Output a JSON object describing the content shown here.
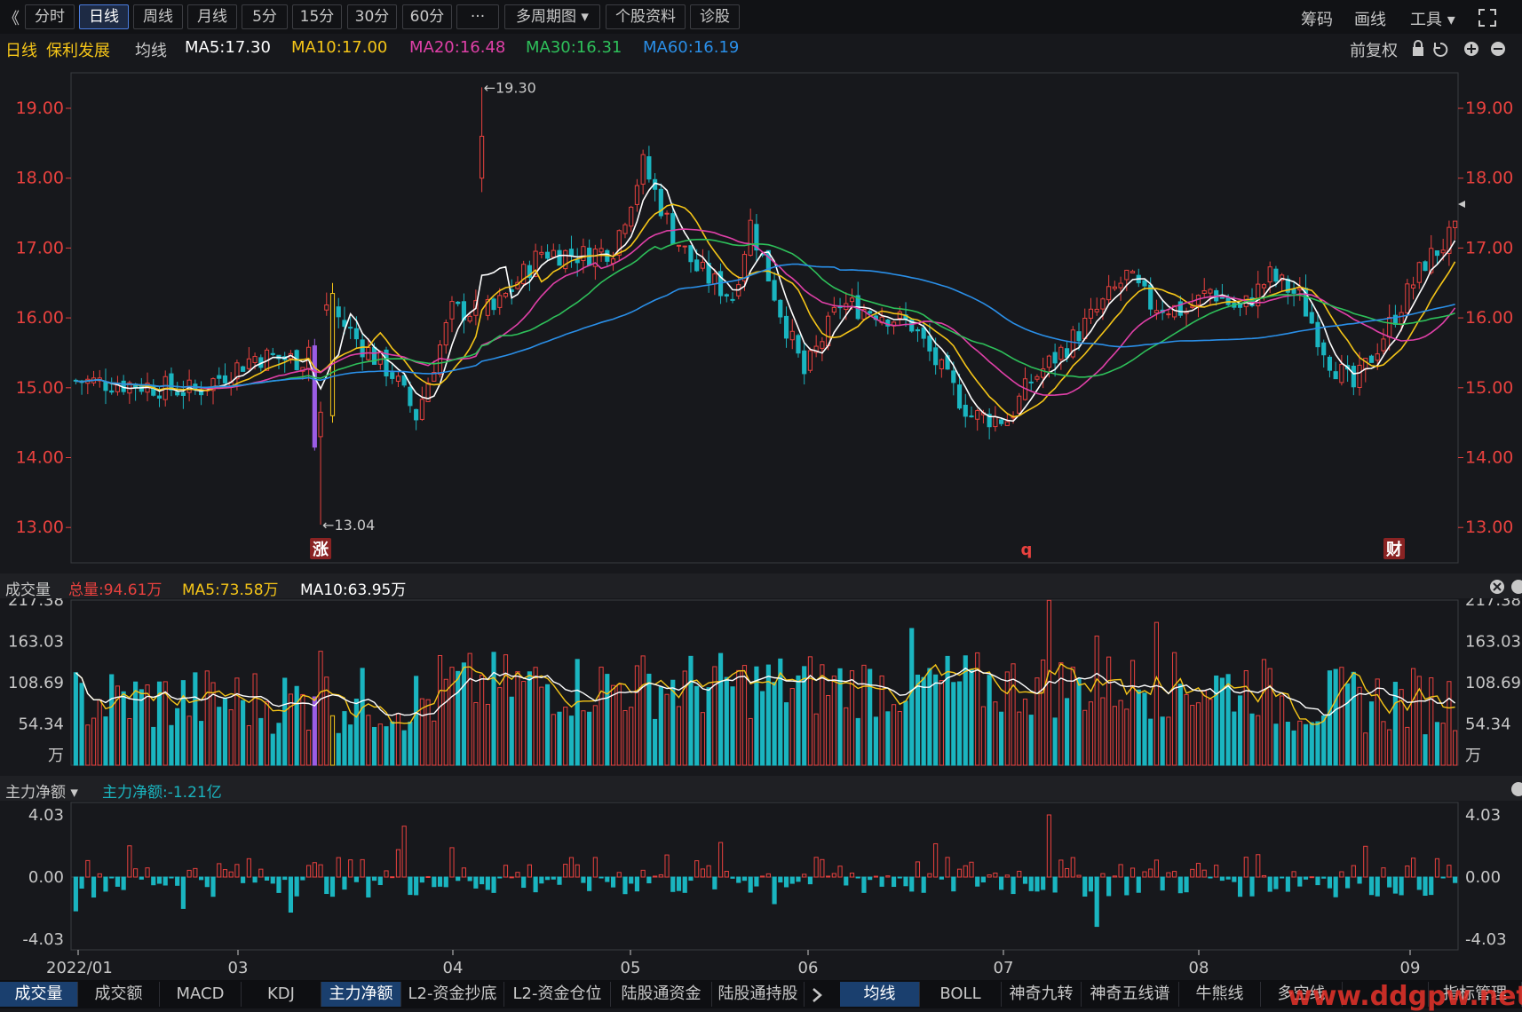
{
  "toolbar": {
    "back": "《",
    "tabs": [
      "分时",
      "日线",
      "周线",
      "月线",
      "5分",
      "15分",
      "30分",
      "60分",
      "···",
      "多周期图 ▾",
      "个股资料",
      "诊股"
    ],
    "active_tab": "日线",
    "right": [
      "筹码",
      "画线",
      "工具 ▾"
    ]
  },
  "ma_bar": {
    "period": "日线",
    "stock_name": "保利发展",
    "label": "均线",
    "ma5": "MA5:17.30",
    "ma10": "MA10:17.00",
    "ma20": "MA20:16.48",
    "ma30": "MA30:16.31",
    "ma60": "MA60:16.19",
    "adjust": "前复权"
  },
  "price_axis": {
    "ticks": [
      "19.00",
      "18.00",
      "17.00",
      "16.00",
      "15.00",
      "14.00",
      "13.00"
    ],
    "high_label": "19.30",
    "low_label": "13.04"
  },
  "markers": [
    "涨",
    "q",
    "财"
  ],
  "volume_panel": {
    "title": "成交量",
    "total": "总量:94.61万",
    "ma5": "MA5:73.58万",
    "ma10": "MA10:63.95万",
    "ticks": [
      "217.38",
      "163.03",
      "108.69",
      "54.34"
    ],
    "unit": "万"
  },
  "flow_panel": {
    "title": "主力净额 ▾",
    "value": "主力净额:-1.21亿",
    "ticks": [
      "4.03",
      "0.00",
      "-4.03"
    ]
  },
  "x_axis": [
    "2022/01",
    "03",
    "04",
    "05",
    "06",
    "07",
    "08",
    "09"
  ],
  "bottom_tabs_left": [
    "成交量",
    "成交额",
    "MACD",
    "KDJ",
    "主力净额",
    "L2-资金抄底",
    "L2-资金仓位",
    "陆股通资金",
    "陆股通持股"
  ],
  "bottom_tabs_right": [
    "均线",
    "BOLL",
    "神奇九转",
    "神奇五线谱",
    "牛熊线",
    "多空线",
    "指标管理"
  ],
  "watermark": "www.ddgpw.net",
  "colors": {
    "up": "#e8413e",
    "down": "#1ab5c0",
    "ma5": "#ffffff",
    "ma10": "#f5c518",
    "ma20": "#e040a8",
    "ma30": "#2ec05a",
    "ma60": "#2a8fe8"
  }
}
